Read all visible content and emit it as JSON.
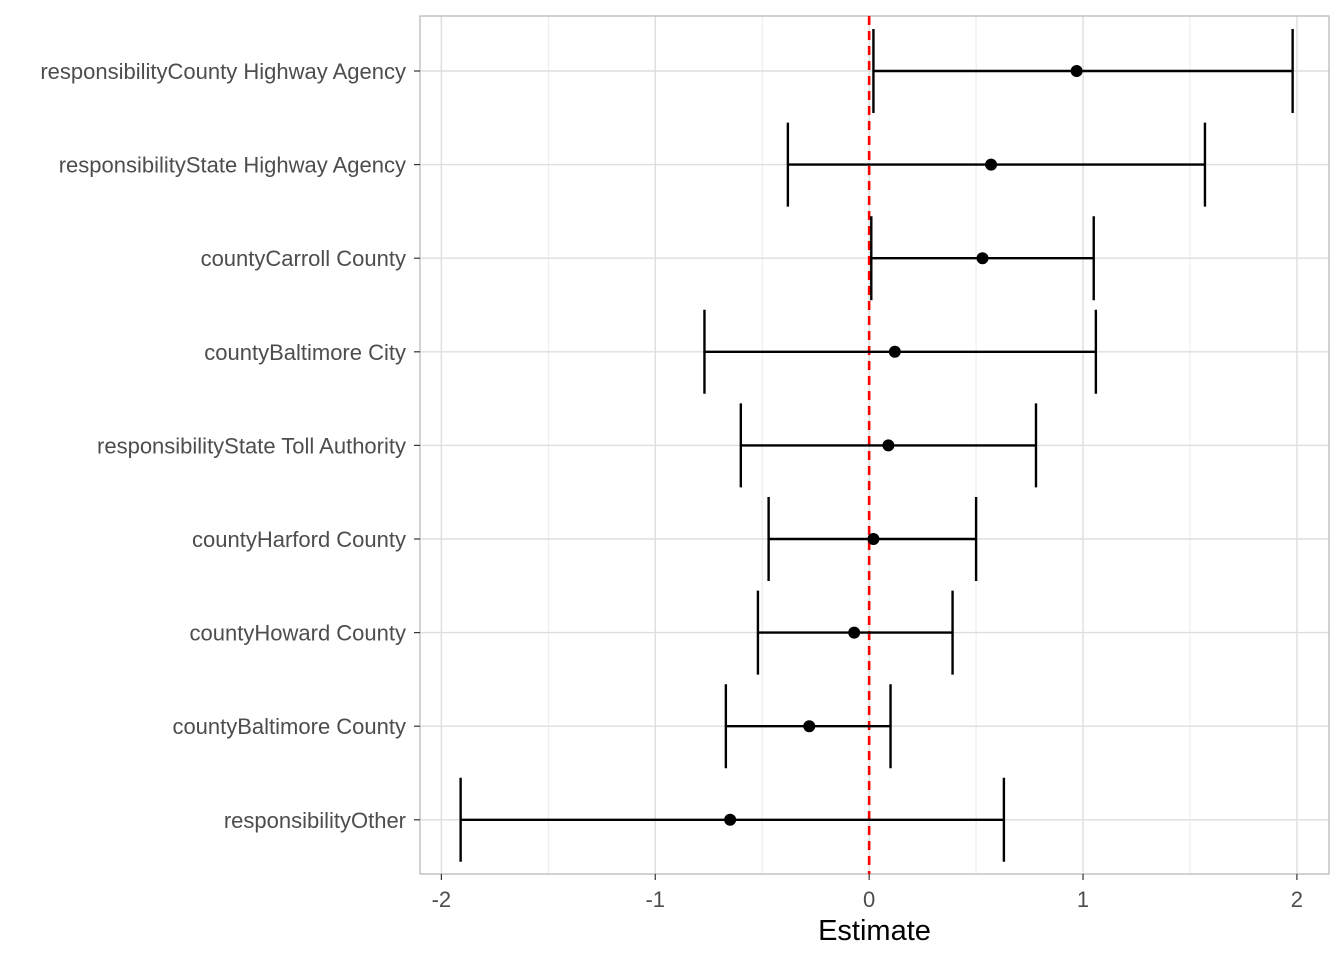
{
  "chart_data": {
    "type": "errorbar",
    "xlabel": "Estimate",
    "ylabel": "",
    "xlim": [
      -2.1,
      2.15
    ],
    "xticks": [
      -2,
      -1,
      0,
      1,
      2
    ],
    "xtick_labels": [
      "-2",
      "-1",
      "0",
      "1",
      "2"
    ],
    "reference_line": {
      "x": 0,
      "color": "#ff0000",
      "style": "dashed"
    },
    "grid": true,
    "categories": [
      "responsibilityCounty Highway Agency",
      "responsibilityState Highway Agency",
      "countyCarroll County",
      "countyBaltimore City",
      "responsibilityState Toll Authority",
      "countyHarford County",
      "countyHoward County",
      "countyBaltimore County",
      "responsibilityOther"
    ],
    "estimates": [
      0.97,
      0.57,
      0.53,
      0.12,
      0.09,
      0.02,
      -0.07,
      -0.28,
      -0.65
    ],
    "lower": [
      0.02,
      -0.38,
      0.01,
      -0.77,
      -0.6,
      -0.47,
      -0.52,
      -0.67,
      -1.91
    ],
    "upper": [
      1.98,
      1.57,
      1.05,
      1.06,
      0.78,
      0.5,
      0.39,
      0.1,
      0.63
    ]
  }
}
